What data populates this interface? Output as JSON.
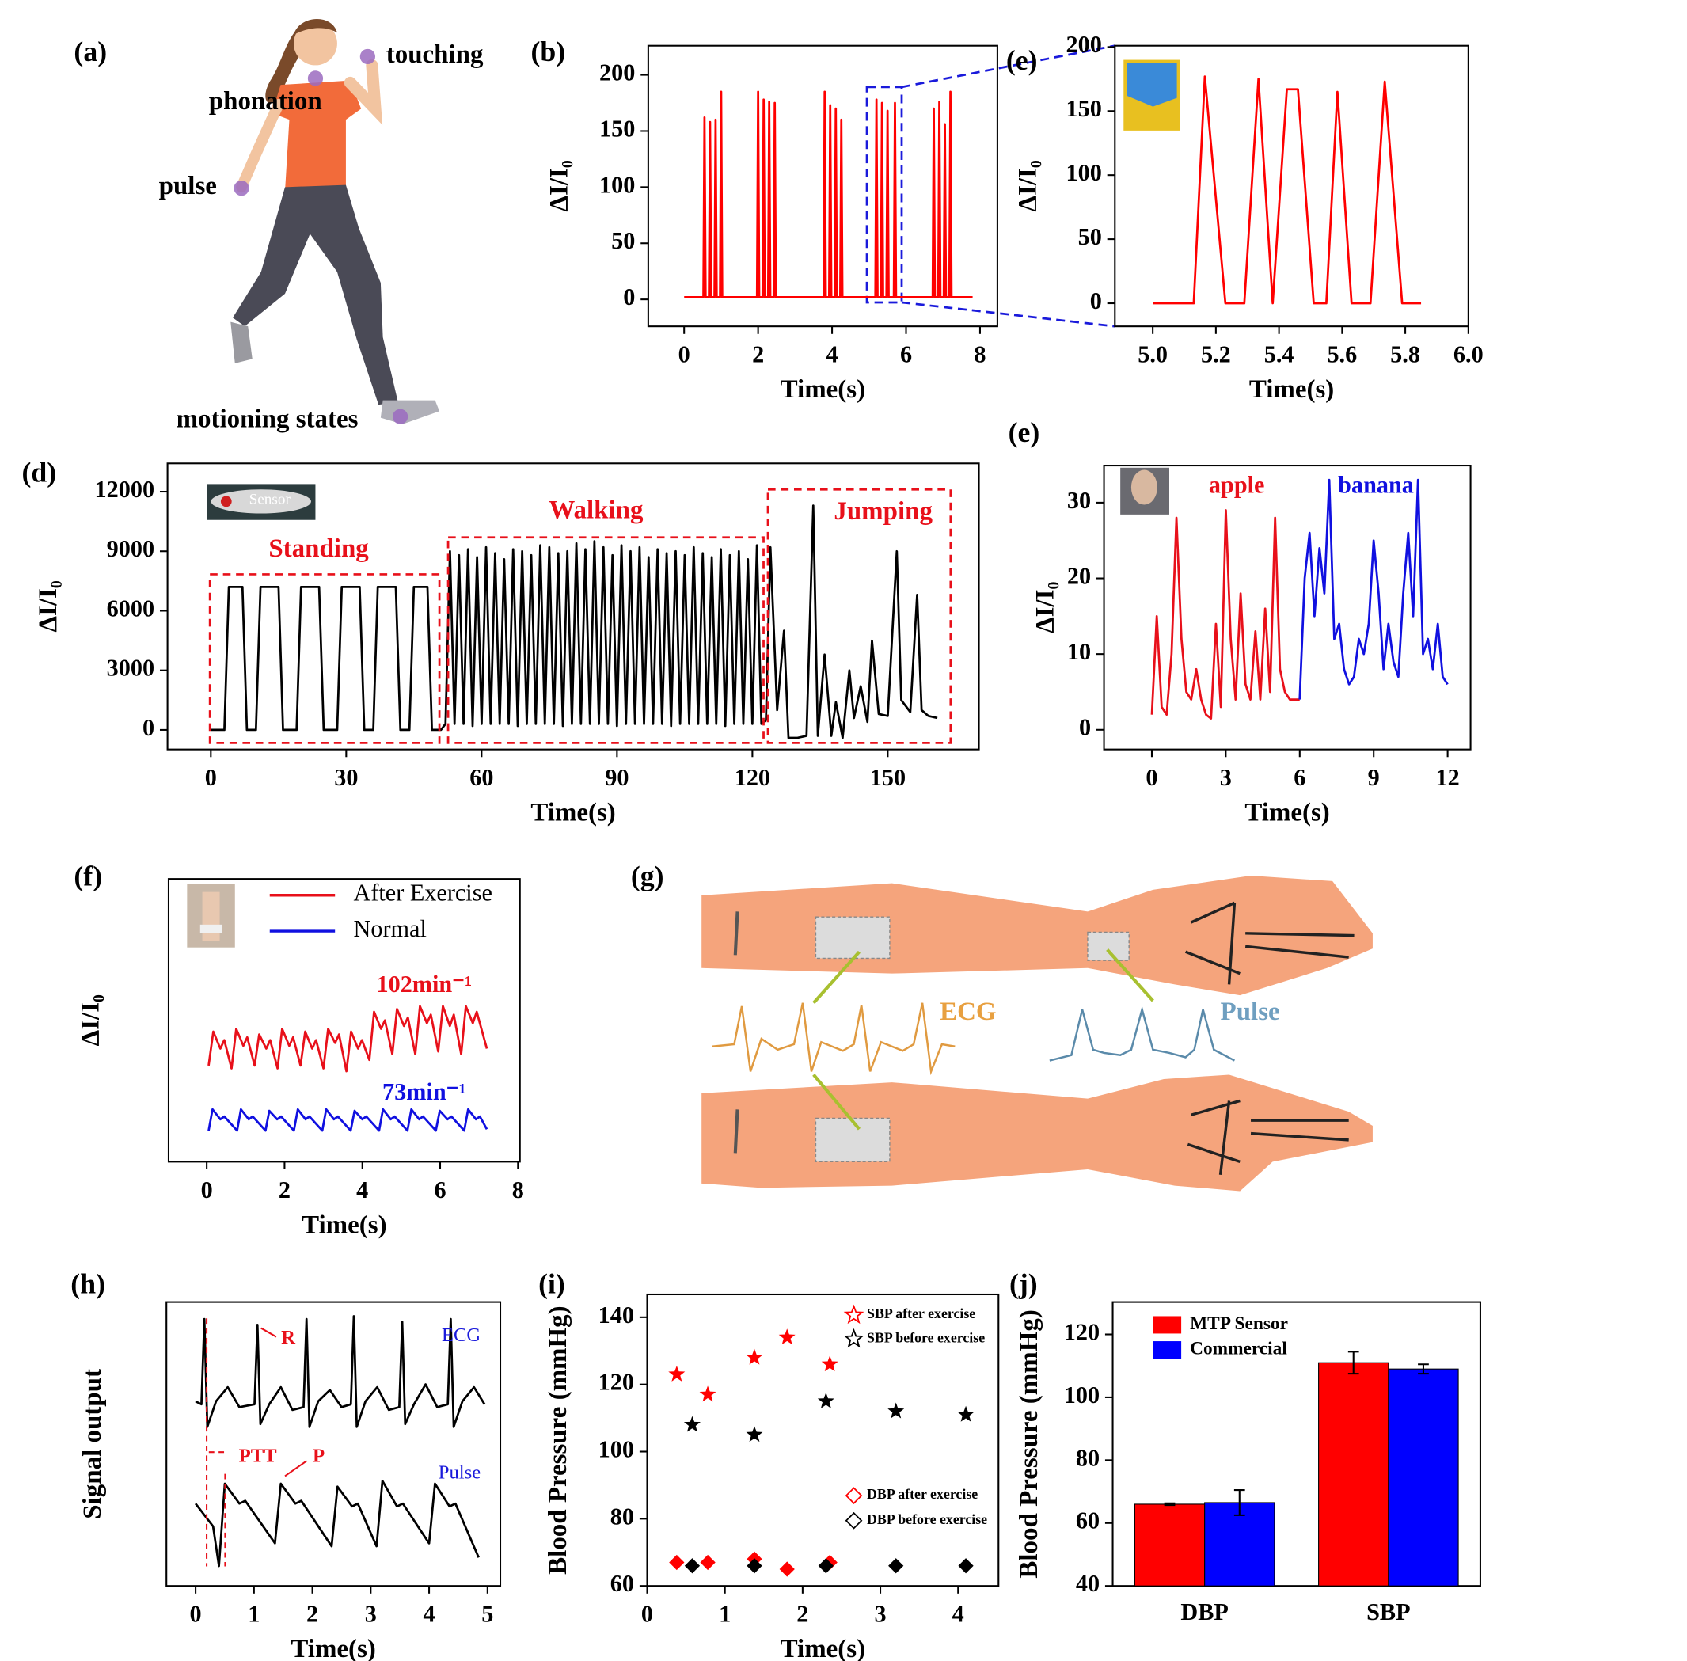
{
  "illustrations": {
    "a": {
      "panel_label": "(a)",
      "labels": [
        "touching",
        "phonation",
        "pulse",
        "motioning states"
      ]
    },
    "g": {
      "panel_label": "(g)",
      "labels": [
        "ECG",
        "Pulse"
      ]
    }
  },
  "chart_data": [
    {
      "type": "line",
      "panel_label": "(b)",
      "xlabel": "Time(s)",
      "ylabel": "ΔI/I₀",
      "color": "#ff0000",
      "xlim": [
        -0.97,
        8.47
      ],
      "ylim": [
        -24,
        226
      ],
      "xticks": [
        0,
        2,
        4,
        6,
        8
      ],
      "yticks": [
        0,
        50,
        100,
        150,
        200
      ],
      "x": [
        0,
        0.52,
        0.55,
        0.58,
        0.67,
        0.7,
        0.73,
        0.82,
        0.85,
        0.88,
        0.97,
        1.0,
        1.03,
        1.97,
        2.0,
        2.03,
        2.12,
        2.15,
        2.18,
        2.27,
        2.3,
        2.33,
        2.42,
        2.45,
        2.48,
        3.77,
        3.8,
        3.83,
        3.92,
        3.95,
        3.98,
        4.07,
        4.1,
        4.13,
        4.22,
        4.25,
        4.28,
        5.17,
        5.2,
        5.23,
        5.32,
        5.35,
        5.38,
        5.47,
        5.5,
        5.53,
        5.67,
        5.7,
        5.73,
        6.72,
        6.75,
        6.78,
        6.87,
        6.9,
        6.93,
        7.02,
        7.05,
        7.08,
        7.17,
        7.2,
        7.23,
        7.8
      ],
      "values": [
        2,
        2,
        162,
        2,
        2,
        158,
        2,
        2,
        160,
        2,
        2,
        185,
        2,
        2,
        185,
        2,
        2,
        178,
        2,
        2,
        176,
        2,
        2,
        175,
        2,
        2,
        185,
        2,
        2,
        173,
        2,
        2,
        170,
        2,
        2,
        160,
        2,
        2,
        178,
        2,
        2,
        175,
        2,
        2,
        168,
        2,
        2,
        175,
        2,
        2,
        170,
        2,
        2,
        176,
        2,
        2,
        156,
        2,
        2,
        185,
        2,
        2
      ]
    },
    {
      "type": "line",
      "panel_label": "(e)",
      "xlabel": "Time(s)",
      "ylabel": "ΔI/I₀",
      "color": "#ff0000",
      "xlim": [
        4.88,
        6.0
      ],
      "ylim": [
        -18,
        201
      ],
      "xticks": [
        {
          "value": 5,
          "label": "5.0"
        },
        5.2,
        5.4,
        5.6,
        5.8,
        {
          "value": 6,
          "label": "6.0"
        }
      ],
      "yticks": [
        0,
        50,
        100,
        150,
        200
      ],
      "x": [
        5.0,
        5.13,
        5.165,
        5.23,
        5.29,
        5.335,
        5.38,
        5.425,
        5.46,
        5.51,
        5.55,
        5.585,
        5.63,
        5.69,
        5.735,
        5.79,
        5.85
      ],
      "values": [
        0,
        0,
        177,
        0,
        0,
        175,
        0,
        167,
        167,
        0,
        0,
        165,
        0,
        0,
        173,
        0,
        0
      ]
    },
    {
      "type": "line",
      "panel_label": "(d)",
      "xlabel": "Time(s)",
      "ylabel": "ΔI/I₀",
      "color": "#000000",
      "xlim": [
        -9.6,
        170.2
      ],
      "ylim": [
        -986,
        13425
      ],
      "xticks": [
        0,
        30,
        60,
        90,
        120,
        150
      ],
      "yticks": [
        0,
        3000,
        6000,
        9000,
        12000
      ],
      "annotations": [
        {
          "text": "Standing",
          "color": "#e8101a"
        },
        {
          "text": "Walking",
          "color": "#e8101a"
        },
        {
          "text": "Jumping",
          "color": "#e8101a"
        },
        {
          "text": "Sensor",
          "color": "#ffffff"
        }
      ],
      "x": [
        0,
        3,
        4,
        7,
        8,
        10,
        11,
        15,
        16,
        19,
        20,
        24,
        25,
        28,
        29,
        33,
        34,
        36,
        37,
        41,
        42,
        44,
        45,
        48,
        49,
        51,
        52,
        53,
        54,
        55,
        56,
        57,
        58,
        59,
        60,
        61,
        62,
        63,
        64,
        65,
        66,
        67,
        68,
        69,
        70,
        71,
        72,
        73,
        74,
        75,
        76,
        77,
        78,
        79,
        80,
        81,
        82,
        83,
        84,
        85,
        86,
        87,
        88,
        89,
        90,
        91,
        92,
        93,
        94,
        95,
        96,
        97,
        98,
        99,
        100,
        101,
        102,
        103,
        104,
        105,
        106,
        107,
        108,
        109,
        110,
        111,
        112,
        113,
        114,
        115,
        116,
        117,
        118,
        119,
        120,
        121,
        122,
        123,
        124,
        125.5,
        127,
        128,
        130,
        132,
        133.5,
        134.5,
        136,
        137.5,
        138.5,
        140,
        141.5,
        142.5,
        144,
        145.5,
        146.5,
        148,
        150,
        152,
        153,
        155,
        156.5,
        157.5,
        159,
        161
      ],
      "values": [
        0,
        0,
        7200,
        7200,
        0,
        0,
        7200,
        7200,
        0,
        0,
        7200,
        7200,
        0,
        0,
        7200,
        7200,
        0,
        0,
        7200,
        7200,
        0,
        0,
        7200,
        7200,
        0,
        0,
        300,
        9000,
        300,
        8800,
        300,
        9100,
        200,
        8700,
        300,
        9200,
        300,
        8900,
        300,
        8600,
        300,
        9100,
        200,
        9000,
        300,
        8800,
        300,
        9300,
        300,
        9200,
        300,
        8900,
        200,
        9000,
        300,
        9400,
        300,
        9100,
        300,
        9500,
        300,
        9200,
        300,
        8800,
        200,
        9300,
        300,
        9000,
        300,
        9200,
        300,
        8700,
        300,
        9100,
        300,
        8900,
        200,
        9000,
        300,
        8800,
        300,
        9200,
        300,
        8900,
        300,
        8700,
        300,
        9100,
        200,
        8800,
        300,
        9000,
        300,
        8600,
        300,
        9300,
        300,
        500,
        9200,
        1000,
        5000,
        -400,
        -400,
        -300,
        11300,
        -300,
        3800,
        -300,
        1400,
        -400,
        3000,
        600,
        2200,
        400,
        4500,
        800,
        700,
        9000,
        1500,
        900,
        6800,
        1000,
        700,
        600
      ]
    },
    {
      "type": "line",
      "panel_label": "(e)",
      "xlabel": "Time(s)",
      "ylabel": "ΔI/I₀",
      "xlim": [
        -1.94,
        12.93
      ],
      "ylim": [
        -2.6,
        34.9
      ],
      "xticks": [
        0,
        3,
        6,
        9,
        12
      ],
      "yticks": [
        0,
        10,
        20,
        30
      ],
      "series": [
        {
          "name": "apple",
          "color": "#e8101a",
          "x": [
            0,
            0.2,
            0.4,
            0.6,
            0.8,
            1.0,
            1.2,
            1.4,
            1.6,
            1.8,
            2.0,
            2.2,
            2.4,
            2.6,
            2.8,
            3.0,
            3.2,
            3.4,
            3.6,
            3.8,
            4.0,
            4.2,
            4.4,
            4.6,
            4.8,
            5.0,
            5.2,
            5.4,
            5.6,
            5.8,
            6.0
          ],
          "values": [
            2,
            15,
            3,
            2,
            10,
            28,
            12,
            5,
            4,
            8,
            4,
            2,
            1.5,
            14,
            3,
            29,
            12,
            4,
            18,
            6,
            4,
            13,
            4,
            16,
            5,
            28,
            8,
            5,
            4,
            4,
            4
          ]
        },
        {
          "name": "banana",
          "color": "#1010e0",
          "x": [
            6.0,
            6.2,
            6.4,
            6.6,
            6.8,
            7.0,
            7.2,
            7.4,
            7.6,
            7.8,
            8.0,
            8.2,
            8.4,
            8.6,
            8.8,
            9.0,
            9.2,
            9.4,
            9.6,
            9.8,
            10.0,
            10.2,
            10.4,
            10.6,
            10.8,
            11.0,
            11.2,
            11.4,
            11.6,
            11.8,
            12.0
          ],
          "values": [
            4,
            20,
            26,
            15,
            24,
            18,
            33,
            12,
            14,
            8,
            6,
            7,
            12,
            10,
            14,
            25,
            18,
            8,
            14,
            9,
            7,
            18,
            26,
            15,
            33,
            10,
            12,
            8,
            14,
            7,
            6
          ]
        }
      ]
    },
    {
      "type": "line",
      "panel_label": "(f)",
      "xlabel": "Time(s)",
      "ylabel": "ΔI/I₀",
      "xlim": [
        -0.98,
        8.05
      ],
      "ylim": [
        0,
        10
      ],
      "xticks": [
        0,
        2,
        4,
        6,
        8
      ],
      "annotations": [
        {
          "text": "102min⁻¹",
          "color": "#e8101a"
        },
        {
          "text": "73min⁻¹",
          "color": "#1010e0"
        }
      ],
      "series": [
        {
          "name": "After Exercise",
          "color": "#e8101a",
          "x": [
            0.05,
            0.17,
            0.35,
            0.45,
            0.64,
            0.76,
            0.94,
            1.04,
            1.23,
            1.35,
            1.53,
            1.63,
            1.82,
            1.94,
            2.12,
            2.22,
            2.41,
            2.53,
            2.71,
            2.81,
            3.0,
            3.12,
            3.3,
            3.4,
            3.59,
            3.71,
            3.89,
            3.99,
            4.18,
            4.3,
            4.48,
            4.58,
            4.77,
            4.89,
            5.07,
            5.17,
            5.36,
            5.48,
            5.66,
            5.76,
            5.95,
            6.07,
            6.25,
            6.35,
            6.54,
            6.66,
            6.84,
            6.94,
            7.2
          ],
          "values": [
            3.4,
            4.6,
            4.0,
            4.3,
            3.3,
            4.7,
            4.1,
            4.4,
            3.4,
            4.5,
            4.0,
            4.3,
            3.3,
            4.7,
            4.1,
            4.4,
            3.4,
            4.6,
            4.0,
            4.3,
            3.3,
            4.7,
            4.2,
            4.5,
            3.2,
            4.6,
            4.0,
            4.3,
            3.6,
            5.3,
            4.7,
            5.0,
            3.8,
            5.4,
            4.8,
            5.1,
            3.8,
            5.5,
            4.9,
            5.2,
            3.9,
            5.5,
            4.8,
            5.2,
            3.8,
            5.5,
            4.9,
            5.3,
            4.0
          ]
        },
        {
          "name": "Normal",
          "color": "#1010e0",
          "x": [
            0.05,
            0.15,
            0.35,
            0.45,
            0.78,
            0.88,
            1.08,
            1.18,
            1.51,
            1.61,
            1.81,
            1.91,
            2.24,
            2.34,
            2.54,
            2.64,
            2.97,
            3.07,
            3.27,
            3.37,
            3.7,
            3.8,
            4.0,
            4.1,
            4.43,
            4.53,
            4.73,
            4.83,
            5.16,
            5.26,
            5.46,
            5.56,
            5.89,
            5.99,
            6.19,
            6.29,
            6.62,
            6.72,
            6.92,
            7.02,
            7.2
          ],
          "values": [
            1.1,
            1.85,
            1.5,
            1.6,
            1.1,
            1.85,
            1.5,
            1.6,
            1.1,
            1.8,
            1.5,
            1.6,
            1.1,
            1.85,
            1.5,
            1.6,
            1.1,
            1.85,
            1.5,
            1.6,
            1.1,
            1.8,
            1.5,
            1.6,
            1.1,
            1.85,
            1.5,
            1.6,
            1.1,
            1.85,
            1.5,
            1.6,
            1.1,
            1.8,
            1.5,
            1.6,
            1.1,
            1.85,
            1.5,
            1.6,
            1.15
          ]
        }
      ]
    },
    {
      "type": "line",
      "panel_label": "(h)",
      "xlabel": "Time(s)",
      "ylabel": "Signal output",
      "xlim": [
        -0.5,
        5.22
      ],
      "ylim": [
        0,
        10
      ],
      "xticks": [
        0,
        1,
        2,
        3,
        4,
        5
      ],
      "annotations": [
        {
          "text": "R",
          "color": "#e8101a"
        },
        {
          "text": "PTT",
          "color": "#e8101a"
        },
        {
          "text": "P",
          "color": "#e8101a"
        }
      ],
      "series": [
        {
          "name": "ECG",
          "color": "#000000",
          "name_color": "#1a1adb",
          "x": [
            0,
            0.1,
            0.15,
            0.2,
            0.35,
            0.55,
            0.75,
            1.01,
            1.06,
            1.11,
            1.26,
            1.46,
            1.66,
            1.85,
            1.9,
            1.95,
            2.1,
            2.3,
            2.5,
            2.66,
            2.71,
            2.76,
            2.91,
            3.11,
            3.31,
            3.49,
            3.54,
            3.59,
            3.74,
            3.94,
            4.14,
            4.32,
            4.37,
            4.42,
            4.57,
            4.77,
            4.95
          ],
          "values": [
            6.5,
            6.4,
            9.4,
            5.6,
            6.5,
            7.0,
            6.3,
            6.4,
            9.2,
            5.7,
            6.4,
            7.0,
            6.2,
            6.3,
            9.4,
            5.6,
            6.5,
            6.9,
            6.3,
            6.4,
            9.5,
            5.6,
            6.5,
            7.0,
            6.2,
            6.3,
            9.3,
            5.7,
            6.4,
            7.1,
            6.3,
            6.4,
            9.4,
            5.6,
            6.5,
            7.0,
            6.4
          ]
        },
        {
          "name": "Pulse",
          "color": "#000000",
          "name_color": "#1a1adb",
          "x": [
            0,
            0.3,
            0.4,
            0.5,
            0.75,
            0.85,
            1.36,
            1.46,
            1.71,
            1.81,
            2.33,
            2.43,
            2.68,
            2.78,
            3.1,
            3.2,
            3.45,
            3.55,
            4.0,
            4.1,
            4.35,
            4.45,
            4.85
          ],
          "values": [
            2.9,
            2.1,
            0.7,
            3.6,
            2.9,
            3.0,
            1.5,
            3.6,
            2.9,
            3.0,
            1.4,
            3.5,
            2.8,
            2.9,
            1.4,
            3.7,
            2.8,
            2.9,
            1.5,
            3.6,
            2.8,
            2.9,
            1.0
          ]
        }
      ]
    },
    {
      "type": "scatter",
      "panel_label": "(i)",
      "xlabel": "Time(s)",
      "ylabel": "Blood Pressure (mmHg)",
      "xlim": [
        0,
        4.52
      ],
      "ylim": [
        60,
        146.8
      ],
      "xticks": [
        0,
        1,
        2,
        3,
        4
      ],
      "yticks": [
        60,
        80,
        100,
        120,
        140
      ],
      "series": [
        {
          "name": "SBP after exercise",
          "marker": "star",
          "color": "#ff0000",
          "x": [
            0.38,
            0.78,
            1.38,
            1.8,
            2.35
          ],
          "values": [
            123,
            117,
            128,
            134,
            126
          ]
        },
        {
          "name": "SBP before exercise",
          "marker": "star",
          "color": "#000000",
          "x": [
            0.58,
            1.38,
            2.3,
            3.2,
            4.1
          ],
          "values": [
            108,
            105,
            115,
            112,
            111
          ]
        },
        {
          "name": "DBP after exercise",
          "marker": "diamond",
          "color": "#ff0000",
          "x": [
            0.38,
            0.78,
            1.38,
            1.8,
            2.35
          ],
          "values": [
            67,
            67,
            68,
            65,
            67
          ]
        },
        {
          "name": "DBP before exercise",
          "marker": "diamond",
          "color": "#000000",
          "x": [
            0.58,
            1.38,
            2.3,
            3.2,
            4.1
          ],
          "values": [
            66,
            66,
            66,
            66,
            66
          ]
        }
      ]
    },
    {
      "type": "bar",
      "panel_label": "(j)",
      "ylabel": "Blood Pressure (mmHg)",
      "categories": [
        "DBP",
        "SBP"
      ],
      "ylim": [
        40,
        130.3
      ],
      "yticks": [
        40,
        60,
        80,
        100,
        120
      ],
      "series": [
        {
          "name": "MTP Sensor",
          "color": "#ff0000",
          "values": [
            66,
            111
          ],
          "errors": [
            0.3,
            3.5
          ]
        },
        {
          "name": "Commercial",
          "color": "#0000ff",
          "values": [
            66.5,
            109
          ],
          "errors": [
            4,
            1.5
          ]
        }
      ]
    }
  ]
}
